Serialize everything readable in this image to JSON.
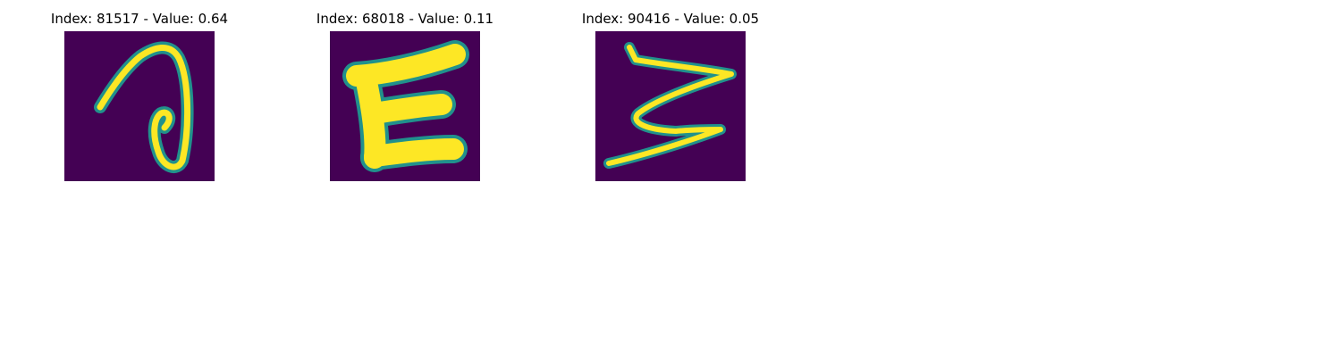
{
  "figure": {
    "panels": [
      {
        "title": "Index: 81517 - Value: 0.64",
        "glyph": "handwritten-loop-character"
      },
      {
        "title": "Index: 68018 - Value: 0.11",
        "glyph": "handwritten-E-character"
      },
      {
        "title": "Index: 90416 - Value: 0.05",
        "glyph": "handwritten-zigzag-character"
      }
    ],
    "colors": {
      "background": "#440154",
      "mid": "#21918c",
      "high": "#fde725"
    }
  }
}
